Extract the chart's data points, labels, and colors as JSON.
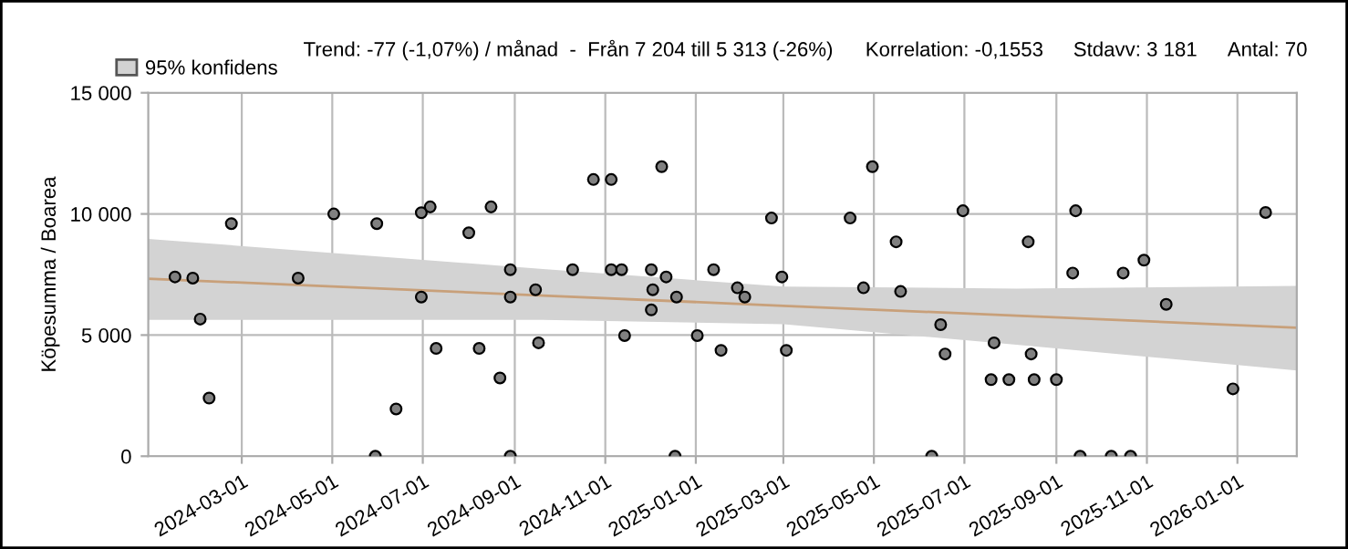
{
  "chart_data": {
    "type": "scatter",
    "ylabel": "Köpesumma / Boarea",
    "annotations": [
      "Trend: -77 (-1,07%) / månad  -  Från 7 204 till 5 313 (-26%)",
      "Korrelation: -0,1553",
      "Stdavv: 3 181",
      "Antal: 70"
    ],
    "xlim": [
      "2023-12-29",
      "2026-02-10"
    ],
    "xticks": [
      "2024-03-01",
      "2024-05-01",
      "2024-07-01",
      "2024-09-01",
      "2024-11-01",
      "2025-01-01",
      "2025-03-01",
      "2025-05-01",
      "2025-07-01",
      "2025-09-01",
      "2025-11-01",
      "2026-01-01"
    ],
    "ylim": [
      0,
      15000
    ],
    "yticks": [
      {
        "value": 0,
        "label": "0"
      },
      {
        "value": 5000,
        "label": "5 000"
      },
      {
        "value": 10000,
        "label": "10 000"
      },
      {
        "value": 15000,
        "label": "15 000"
      }
    ],
    "grid": true,
    "legend": "top left",
    "marker": "circle",
    "series": [
      {
        "type": "line",
        "name": "95% konfidens",
        "color": "#c8a07a",
        "marker": "none",
        "x": [
          "2023-12-29",
          "2024-09-20",
          "2025-03-01",
          "2025-08-05",
          "2026-02-10"
        ],
        "values": [
          7330,
          6630,
          6210,
          5800,
          5300
        ],
        "lower": [
          5630,
          5630,
          5450,
          4600,
          3540
        ],
        "upper": [
          8970,
          7730,
          7000,
          6920,
          7030
        ]
      },
      {
        "color": "#808080",
        "x": [
          "2024-01-16",
          "2024-01-28",
          "2024-02-02",
          "2024-02-08",
          "2024-02-23",
          "2024-04-08",
          "2024-05-02",
          "2024-05-30",
          "2024-05-31",
          "2024-06-13",
          "2024-06-30",
          "2024-06-30",
          "2024-07-06",
          "2024-07-10",
          "2024-08-01",
          "2024-08-08",
          "2024-08-16",
          "2024-08-22",
          "2024-08-29",
          "2024-08-29",
          "2024-08-29",
          "2024-09-15",
          "2024-09-17",
          "2024-10-10",
          "2024-10-24",
          "2024-11-05",
          "2024-11-05",
          "2024-11-12",
          "2024-11-14",
          "2024-12-02",
          "2024-12-02",
          "2024-12-03",
          "2024-12-09",
          "2024-12-12",
          "2024-12-18",
          "2024-12-19",
          "2025-01-02",
          "2025-01-13",
          "2025-01-18",
          "2025-01-29",
          "2025-02-03",
          "2025-02-21",
          "2025-02-28",
          "2025-03-03",
          "2025-04-15",
          "2025-04-24",
          "2025-04-30",
          "2025-05-16",
          "2025-05-19",
          "2025-06-09",
          "2025-06-15",
          "2025-06-18",
          "2025-06-30",
          "2025-07-19",
          "2025-07-21",
          "2025-07-31",
          "2025-08-13",
          "2025-08-15",
          "2025-08-17",
          "2025-09-01",
          "2025-09-12",
          "2025-09-14",
          "2025-09-17",
          "2025-10-08",
          "2025-10-16",
          "2025-10-21",
          "2025-10-30",
          "2025-11-14",
          "2025-12-29",
          "2026-01-20"
        ],
        "values": [
          7400,
          7350,
          5660,
          2400,
          9600,
          7350,
          10000,
          0,
          9600,
          1950,
          10050,
          6570,
          10290,
          4450,
          9220,
          4450,
          10290,
          3230,
          7700,
          6570,
          0,
          6870,
          4680,
          7700,
          11420,
          11420,
          7700,
          7700,
          4980,
          7700,
          6040,
          6870,
          11950,
          7400,
          0,
          6570,
          4980,
          7700,
          4370,
          6950,
          6570,
          9830,
          7400,
          4370,
          9830,
          6950,
          11950,
          8850,
          6800,
          0,
          5430,
          4220,
          10130,
          3160,
          4680,
          3160,
          8850,
          4220,
          3160,
          3160,
          7560,
          10130,
          0,
          0,
          7560,
          0,
          8090,
          6270,
          2780,
          10060
        ]
      }
    ]
  }
}
